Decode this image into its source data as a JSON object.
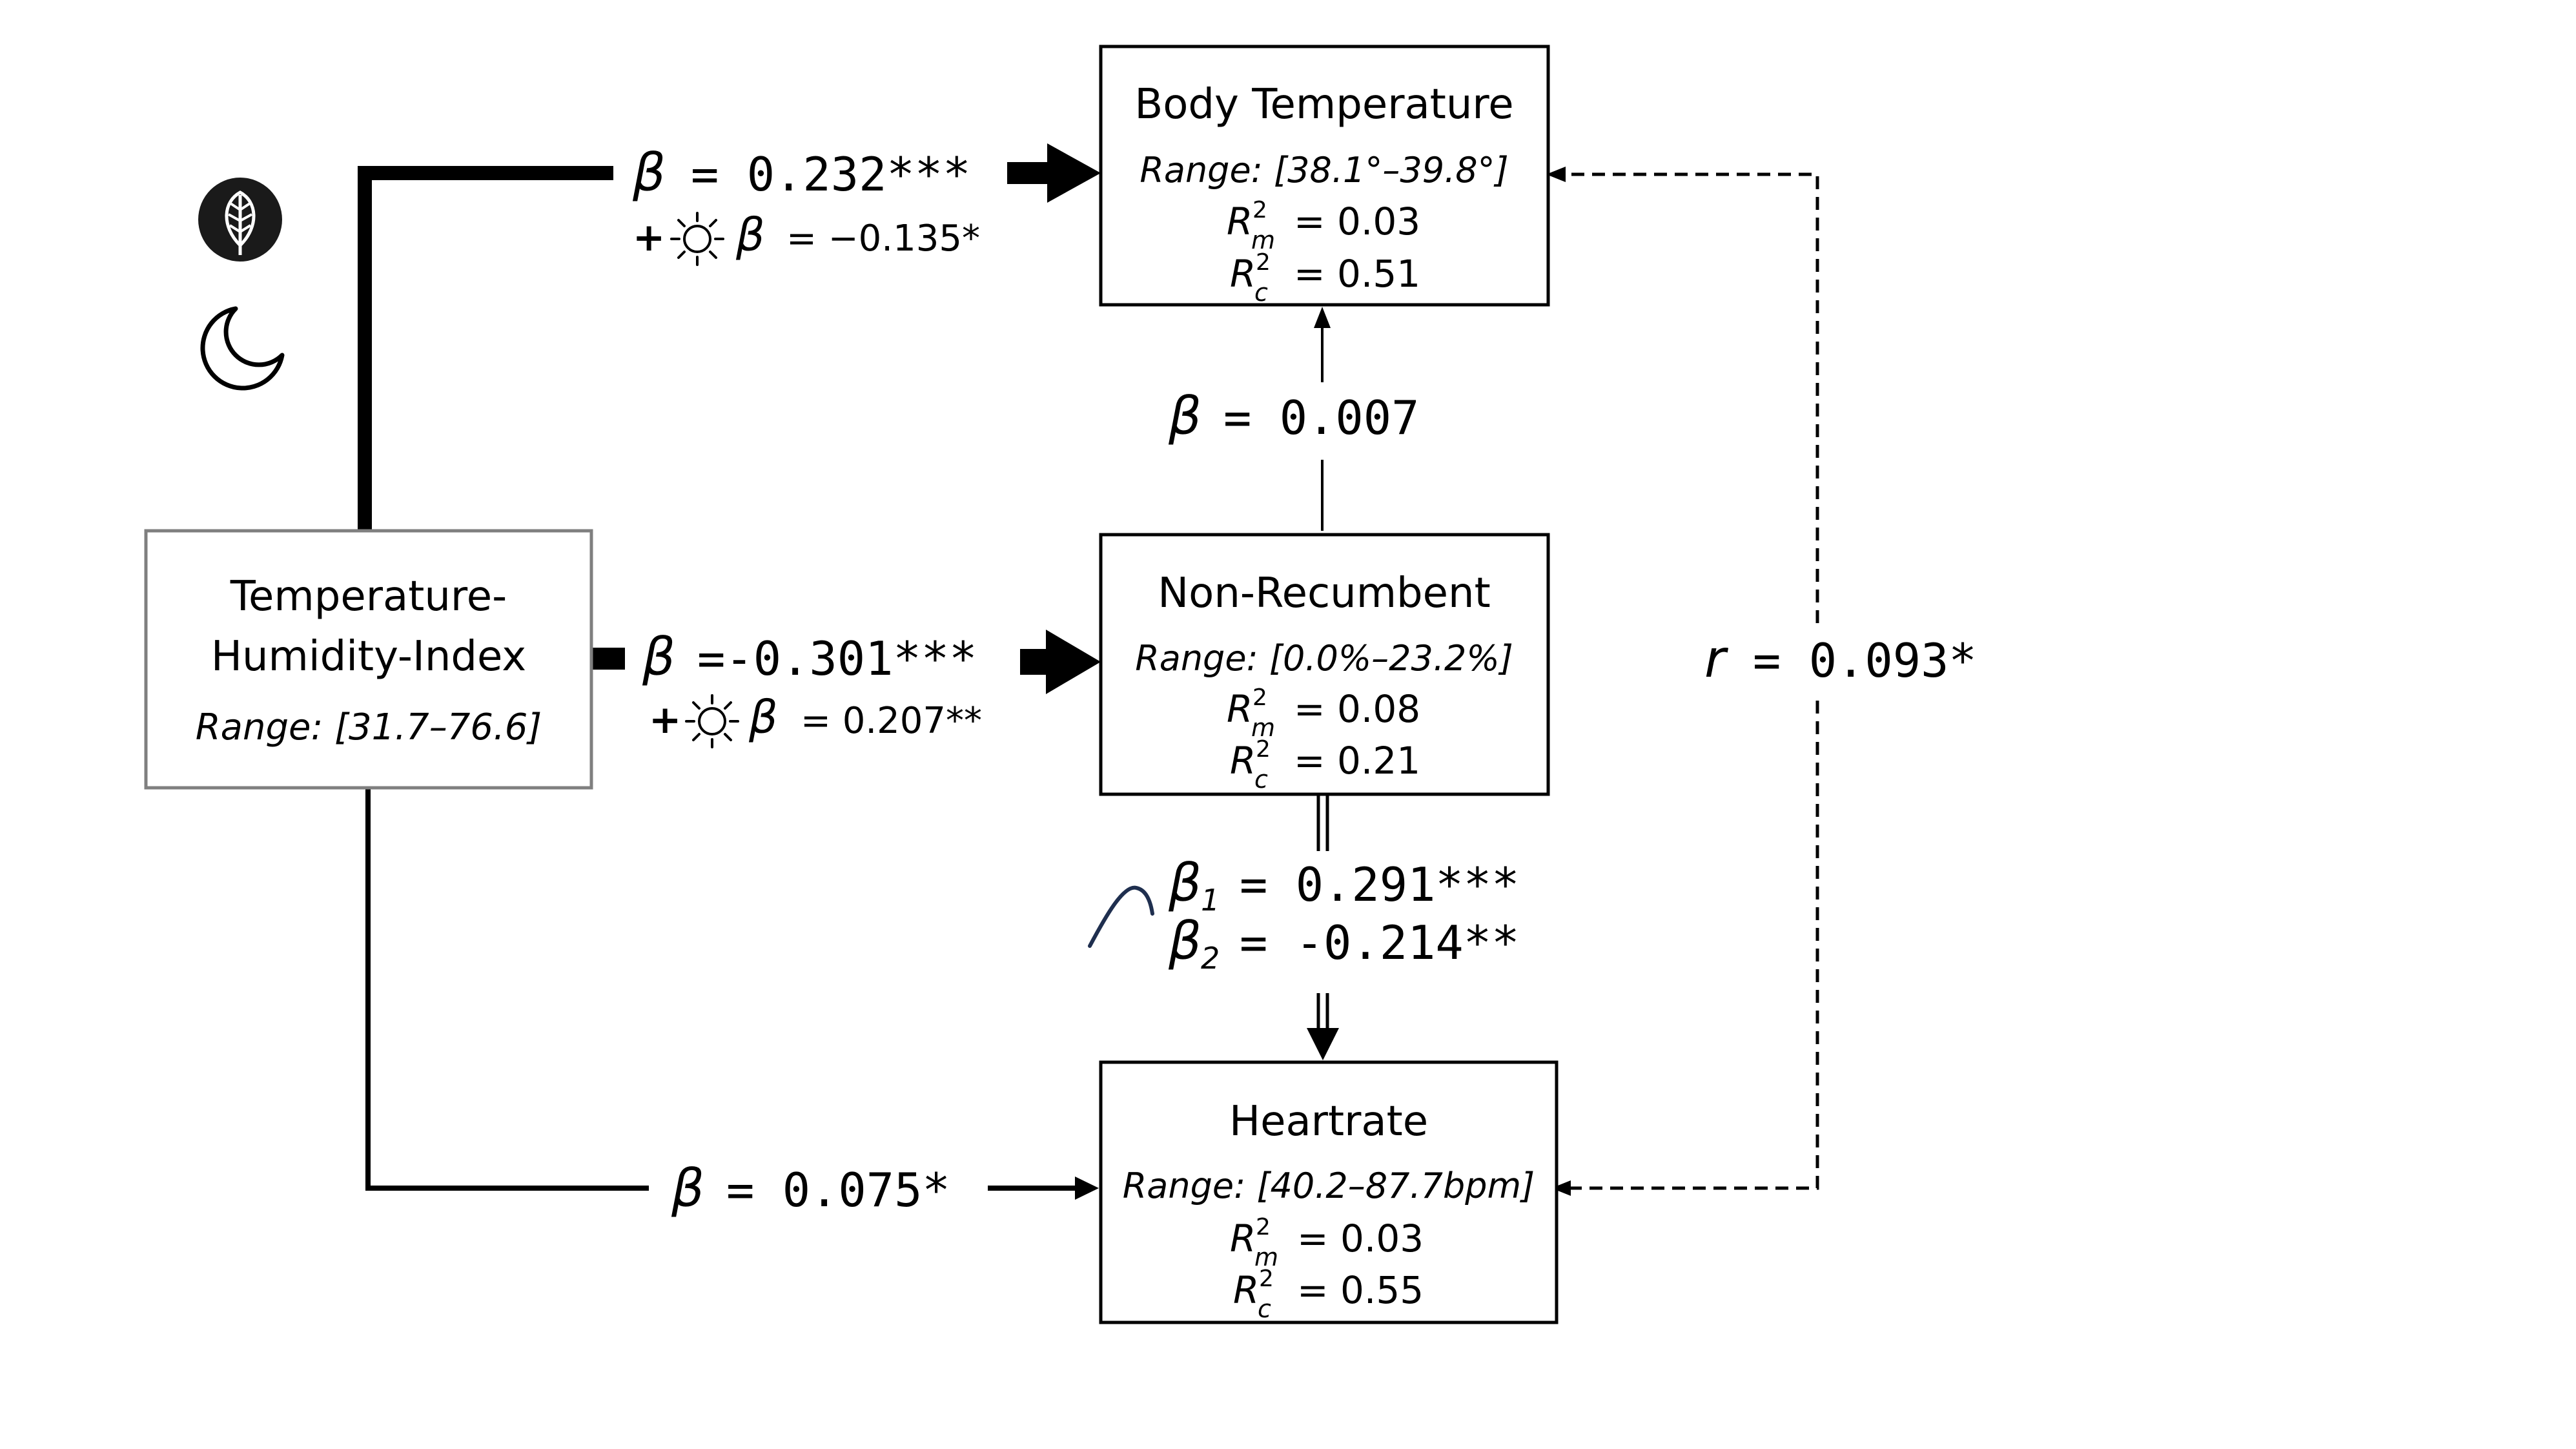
{
  "nodes": {
    "thi": {
      "title_line1": "Temperature-",
      "title_line2": "Humidity-Index",
      "range": "Range: [31.7–76.6]"
    },
    "body_temp": {
      "title": "Body Temperature",
      "range": "Range: [38.1°–39.8°]",
      "r2m": "= 0.03",
      "r2c": "= 0.51"
    },
    "non_recumbent": {
      "title": "Non-Recumbent",
      "range": "Range: [0.0%–23.2%]",
      "r2m": "= 0.08",
      "r2c": "= 0.21"
    },
    "heartrate": {
      "title": "Heartrate",
      "range": "Range: [40.2–87.7bpm]",
      "r2m": "= 0.03",
      "r2c": "= 0.55"
    }
  },
  "edges": {
    "thi_to_bt": {
      "beta": "= 0.232***",
      "interaction_beta": "=  −0.135*"
    },
    "thi_to_nr": {
      "beta": "=-0.301***",
      "interaction_beta": "=  0.207**"
    },
    "nr_to_bt": {
      "beta": "= 0.007"
    },
    "nr_to_hr": {
      "beta1": "=  0.291***",
      "beta2": "= -0.214**"
    },
    "thi_to_hr": {
      "beta": "= 0.075*"
    },
    "bt_hr_corr": {
      "r": "= 0.093*"
    }
  },
  "symbols": {
    "beta": "β",
    "beta1_sub": "1",
    "beta2_sub": "2",
    "r": "r",
    "plus": "+",
    "r2_base": "R",
    "r2_sup": "2",
    "r2m_sub": "m",
    "r2c_sub": "c"
  },
  "icons": [
    "leaf-icon",
    "moon-icon",
    "sun-icon",
    "quadratic-curve-icon"
  ],
  "colors": {
    "line": "#000000",
    "box_border": "#000000",
    "thi_box_border": "#7f7f7f",
    "leaf_circle": "#1a1a1a",
    "curve": "#1f2f4f"
  }
}
